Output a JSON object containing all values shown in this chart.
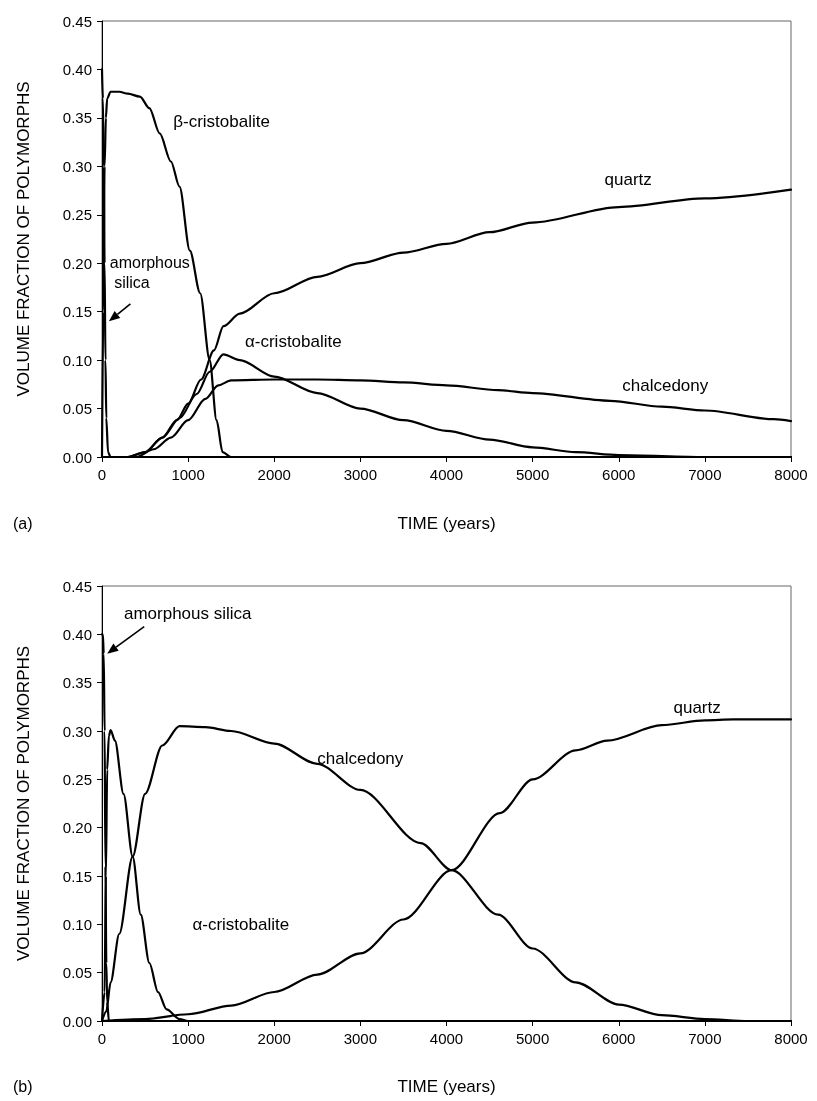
{
  "chart_data": [
    {
      "type": "line",
      "xlabel": "TIME (years)",
      "ylabel": "VOLUME FRACTION OF POLYMORPHS",
      "annotations": [
        "(a)"
      ],
      "xlim": [
        0,
        8000
      ],
      "xticks": [
        0,
        1000,
        2000,
        3000,
        4000,
        5000,
        6000,
        7000,
        8000
      ],
      "ylim": [
        0,
        0.45
      ],
      "yticks": [
        {
          "value": 0,
          "label": "0.00"
        },
        {
          "value": 0.05,
          "label": "0.05"
        },
        {
          "value": 0.1,
          "label": "0.10"
        },
        {
          "value": 0.15,
          "label": "0.15"
        },
        {
          "value": 0.2,
          "label": "0.20"
        },
        {
          "value": 0.25,
          "label": "0.25"
        },
        {
          "value": 0.3,
          "label": "0.30"
        },
        {
          "value": 0.35,
          "label": "0.35"
        },
        {
          "value": 0.4,
          "label": "0.40"
        },
        {
          "value": 0.45,
          "label": "0.45"
        }
      ],
      "grid": false,
      "legend": false,
      "marker": "none",
      "line_style": "solid",
      "series": [
        {
          "name": "amorphous silica",
          "color": "#000000",
          "x": [
            0,
            10,
            20,
            30,
            40,
            50,
            70,
            100,
            8000
          ],
          "values": [
            0.4,
            0.37,
            0.3,
            0.2,
            0.1,
            0.04,
            0.005,
            0,
            0
          ]
        },
        {
          "name": "β-cristobalite",
          "color": "#000000",
          "x": [
            0,
            15,
            30,
            45,
            60,
            100,
            200,
            300,
            440,
            550,
            670,
            800,
            900,
            1020,
            1140,
            1250,
            1330,
            1400,
            1500,
            8000
          ],
          "values": [
            0,
            0.15,
            0.3,
            0.35,
            0.37,
            0.377,
            0.377,
            0.375,
            0.372,
            0.36,
            0.334,
            0.305,
            0.279,
            0.213,
            0.169,
            0.1,
            0.038,
            0.005,
            0,
            0
          ]
        },
        {
          "name": "quartz",
          "color": "#000000",
          "x": [
            0,
            300,
            500,
            700,
            870,
            1000,
            1150,
            1300,
            1410,
            1600,
            2000,
            2500,
            3000,
            3500,
            4000,
            4500,
            5000,
            6000,
            7000,
            8000
          ],
          "values": [
            0,
            0,
            0.005,
            0.02,
            0.038,
            0.055,
            0.08,
            0.11,
            0.135,
            0.148,
            0.169,
            0.186,
            0.2,
            0.211,
            0.22,
            0.232,
            0.242,
            0.258,
            0.267,
            0.276
          ]
        },
        {
          "name": "α-cristobalite",
          "color": "#000000",
          "x": [
            0,
            300,
            500,
            700,
            900,
            1100,
            1250,
            1410,
            1600,
            2000,
            2500,
            3000,
            3500,
            4000,
            4500,
            5000,
            5500,
            6000,
            7000,
            8000
          ],
          "values": [
            0,
            0,
            0.005,
            0.02,
            0.04,
            0.065,
            0.088,
            0.106,
            0.1,
            0.083,
            0.066,
            0.05,
            0.038,
            0.027,
            0.018,
            0.01,
            0.005,
            0.002,
            0,
            0
          ]
        },
        {
          "name": "chalcedony",
          "color": "#000000",
          "x": [
            0,
            400,
            600,
            800,
            1000,
            1200,
            1350,
            1500,
            2000,
            2500,
            3000,
            3500,
            4000,
            4600,
            5000,
            5900,
            6500,
            7000,
            7800,
            8000
          ],
          "values": [
            0,
            0,
            0.008,
            0.02,
            0.038,
            0.06,
            0.074,
            0.079,
            0.08,
            0.08,
            0.079,
            0.077,
            0.074,
            0.069,
            0.066,
            0.058,
            0.052,
            0.048,
            0.039,
            0.037
          ]
        }
      ]
    },
    {
      "type": "line",
      "xlabel": "TIME (years)",
      "ylabel": "VOLUME FRACTION OF POLYMORPHS",
      "annotations": [
        "(b)"
      ],
      "xlim": [
        0,
        8000
      ],
      "xticks": [
        0,
        1000,
        2000,
        3000,
        4000,
        5000,
        6000,
        7000,
        8000
      ],
      "ylim": [
        0,
        0.45
      ],
      "yticks": [
        {
          "value": 0,
          "label": "0.00"
        },
        {
          "value": 0.05,
          "label": "0.05"
        },
        {
          "value": 0.1,
          "label": "0.10"
        },
        {
          "value": 0.15,
          "label": "0.15"
        },
        {
          "value": 0.2,
          "label": "0.20"
        },
        {
          "value": 0.25,
          "label": "0.25"
        },
        {
          "value": 0.3,
          "label": "0.30"
        },
        {
          "value": 0.35,
          "label": "0.35"
        },
        {
          "value": 0.4,
          "label": "0.40"
        },
        {
          "value": 0.45,
          "label": "0.45"
        }
      ],
      "grid": false,
      "legend": false,
      "marker": "none",
      "line_style": "solid",
      "series": [
        {
          "name": "amorphous silica",
          "color": "#000000",
          "x": [
            0,
            10,
            20,
            30,
            40,
            50,
            60,
            80,
            8000
          ],
          "values": [
            0.4,
            0.4,
            0.38,
            0.3,
            0.16,
            0.06,
            0.02,
            0,
            0
          ]
        },
        {
          "name": "α-cristobalite",
          "color": "#000000",
          "x": [
            0,
            30,
            45,
            60,
            80,
            100,
            150,
            250,
            356,
            450,
            550,
            650,
            750,
            900,
            1000,
            8000
          ],
          "values": [
            0,
            0.03,
            0.15,
            0.26,
            0.295,
            0.301,
            0.29,
            0.235,
            0.17,
            0.11,
            0.06,
            0.03,
            0.012,
            0.002,
            0,
            0
          ]
        },
        {
          "name": "chalcedony",
          "color": "#000000",
          "x": [
            0,
            50,
            100,
            200,
            356,
            500,
            700,
            900,
            1200,
            1500,
            2000,
            2500,
            3000,
            3700,
            4060,
            4600,
            5000,
            5500,
            6000,
            6500,
            7000,
            7500,
            8000
          ],
          "values": [
            0,
            0.01,
            0.04,
            0.09,
            0.17,
            0.235,
            0.285,
            0.305,
            0.304,
            0.3,
            0.287,
            0.266,
            0.239,
            0.184,
            0.156,
            0.11,
            0.075,
            0.04,
            0.017,
            0.006,
            0.002,
            0,
            0
          ]
        },
        {
          "name": "quartz",
          "color": "#000000",
          "x": [
            0,
            500,
            1000,
            1500,
            2000,
            2500,
            3000,
            3500,
            4060,
            4620,
            5000,
            5500,
            5865,
            6500,
            7000,
            7330,
            8000
          ],
          "values": [
            0,
            0.002,
            0.007,
            0.016,
            0.03,
            0.048,
            0.07,
            0.105,
            0.156,
            0.215,
            0.25,
            0.28,
            0.29,
            0.306,
            0.311,
            0.312,
            0.312
          ]
        }
      ]
    }
  ]
}
